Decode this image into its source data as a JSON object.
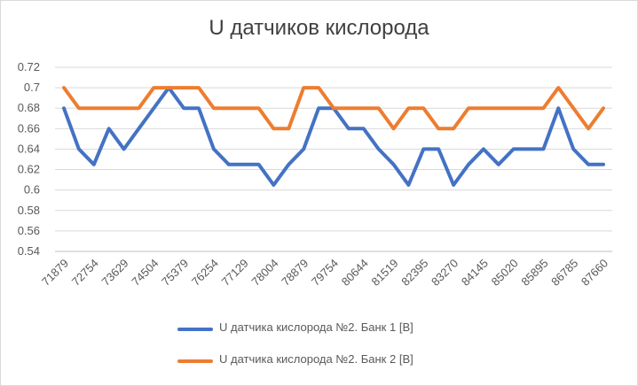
{
  "chart_data": {
    "type": "line",
    "title": "U датчиков кислорода",
    "xlabel": "",
    "ylabel": "",
    "ylim": [
      0.54,
      0.72
    ],
    "yticks": [
      0.54,
      0.56,
      0.58,
      0.6,
      0.62,
      0.64,
      0.66,
      0.68,
      0.7,
      0.72
    ],
    "ytick_labels": [
      "0.54",
      "0.56",
      "0.58",
      "0.6",
      "0.62",
      "0.64",
      "0.66",
      "0.68",
      "0.7",
      "0.72"
    ],
    "x_tick_labels": [
      "71879",
      "72754",
      "73629",
      "74504",
      "75379",
      "76254",
      "77129",
      "78004",
      "78879",
      "79754",
      "80644",
      "81519",
      "82395",
      "83270",
      "84145",
      "85020",
      "85895",
      "86785",
      "87660"
    ],
    "grid": true,
    "legend_position": "bottom",
    "series": [
      {
        "name": "U датчика кислорода №2. Банк 1 [В]",
        "color": "#4472c4",
        "values": [
          0.68,
          0.64,
          0.625,
          0.66,
          0.64,
          0.66,
          0.68,
          0.7,
          0.68,
          0.68,
          0.64,
          0.625,
          0.625,
          0.625,
          0.605,
          0.625,
          0.64,
          0.68,
          0.68,
          0.66,
          0.66,
          0.64,
          0.625,
          0.605,
          0.64,
          0.64,
          0.605,
          0.625,
          0.64,
          0.625,
          0.64,
          0.64,
          0.64,
          0.68,
          0.64,
          0.625,
          0.625
        ]
      },
      {
        "name": "U датчика кислорода №2. Банк 2 [В]",
        "color": "#ed7d31",
        "values": [
          0.7,
          0.68,
          0.68,
          0.68,
          0.68,
          0.68,
          0.7,
          0.7,
          0.7,
          0.7,
          0.68,
          0.68,
          0.68,
          0.68,
          0.66,
          0.66,
          0.7,
          0.7,
          0.68,
          0.68,
          0.68,
          0.68,
          0.66,
          0.68,
          0.68,
          0.66,
          0.66,
          0.68,
          0.68,
          0.68,
          0.68,
          0.68,
          0.68,
          0.7,
          0.68,
          0.66,
          0.68
        ]
      }
    ]
  }
}
